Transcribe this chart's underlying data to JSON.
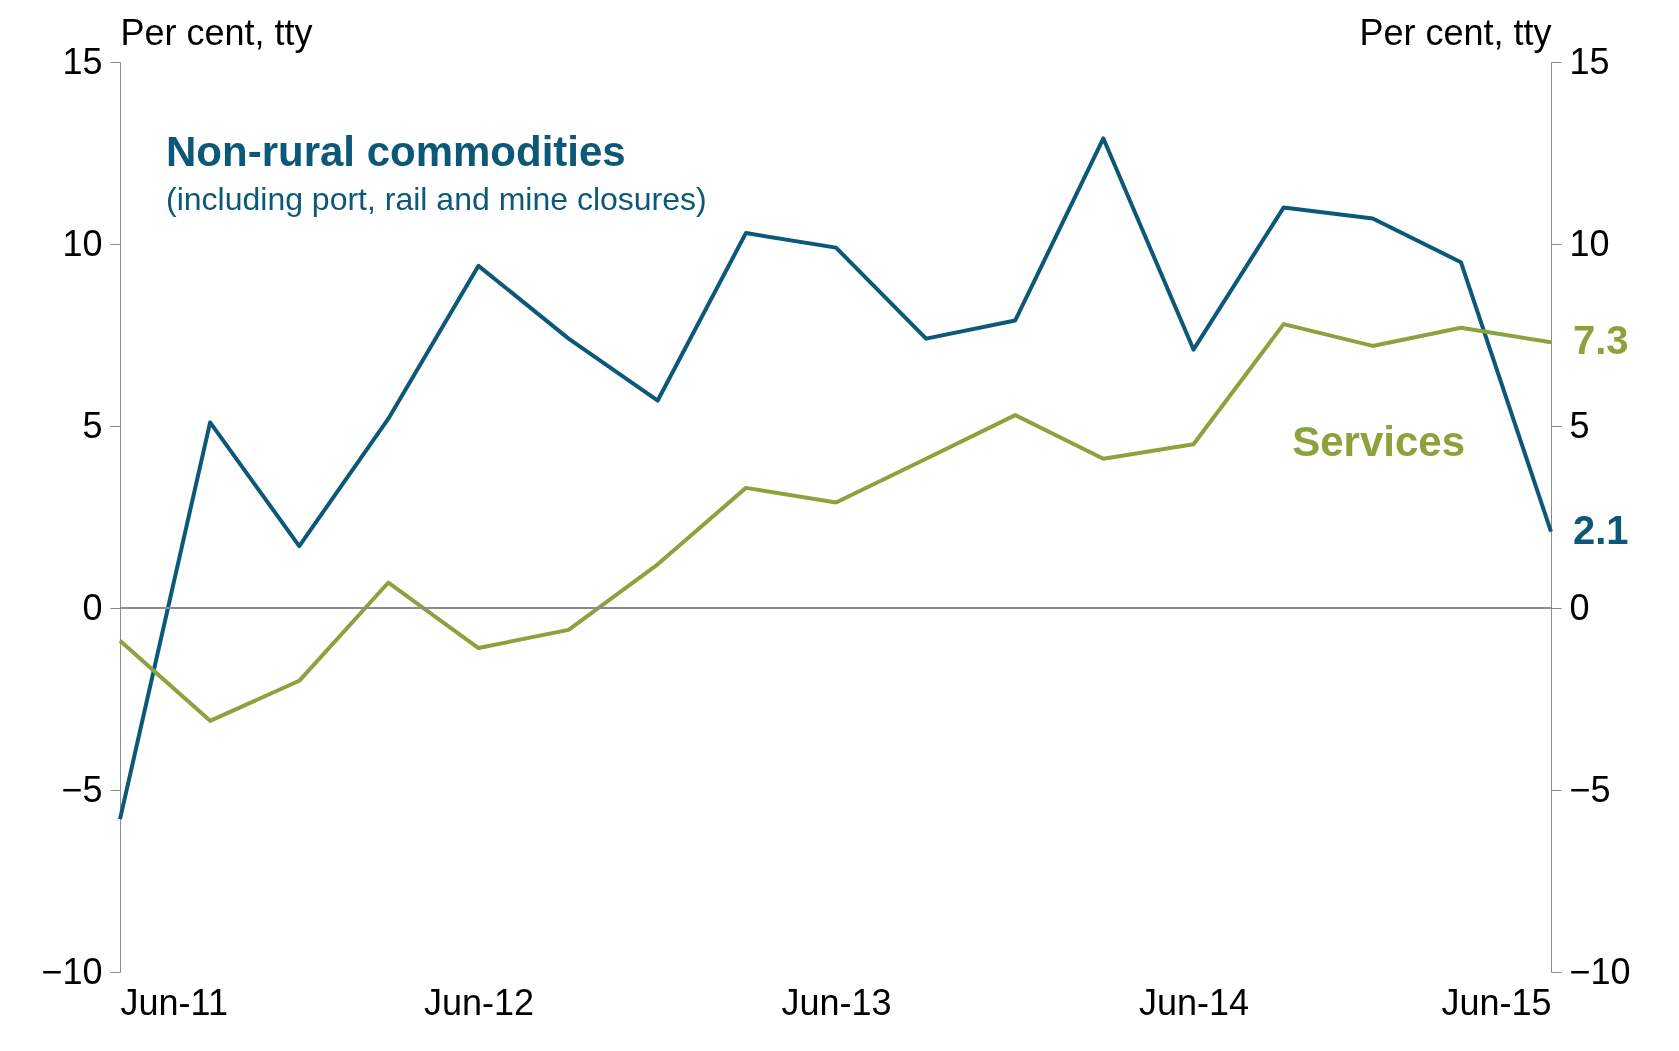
{
  "chart_data": {
    "type": "line",
    "ylabel": "Per cent, tty",
    "y2label": "Per cent, tty",
    "x": [
      "2011-06",
      "2011-09",
      "2011-12",
      "2012-03",
      "2012-06",
      "2012-09",
      "2012-12",
      "2013-03",
      "2013-06",
      "2013-09",
      "2013-12",
      "2014-03",
      "2014-06",
      "2014-09",
      "2014-12",
      "2015-03",
      "2015-06"
    ],
    "xlim": [
      "2011-06",
      "2015-06"
    ],
    "xticks": [
      {
        "value": "2011-06",
        "label": "Jun-11"
      },
      {
        "value": "2012-06",
        "label": "Jun-12"
      },
      {
        "value": "2013-06",
        "label": "Jun-13"
      },
      {
        "value": "2014-06",
        "label": "Jun-14"
      },
      {
        "value": "2015-06",
        "label": "Jun-15"
      }
    ],
    "ylim": [
      -10,
      15
    ],
    "yticks": [
      -10,
      -5,
      0,
      5,
      10,
      15
    ],
    "y2lim": [
      -10,
      15
    ],
    "y2ticks": [
      -10,
      -5,
      0,
      5,
      10,
      15
    ],
    "series": [
      {
        "name": "Non-rural commodities",
        "color": "#0b5878",
        "values": [
          -5.8,
          5.1,
          1.7,
          5.2,
          9.4,
          7.4,
          5.7,
          10.3,
          9.9,
          7.4,
          7.9,
          12.9,
          7.1,
          11.0,
          10.7,
          9.5,
          2.1
        ],
        "value_labels": [
          null,
          null,
          null,
          null,
          null,
          null,
          null,
          null,
          null,
          null,
          null,
          null,
          null,
          null,
          null,
          null,
          "2.1"
        ]
      },
      {
        "name": "Services",
        "color": "#8ca23c",
        "values": [
          -0.9,
          -3.1,
          -2.0,
          0.7,
          -1.1,
          -0.6,
          1.2,
          3.3,
          2.9,
          4.1,
          5.3,
          4.1,
          4.5,
          7.8,
          7.2,
          7.7,
          7.3
        ],
        "value_labels": [
          null,
          null,
          null,
          null,
          null,
          null,
          null,
          null,
          null,
          null,
          null,
          null,
          null,
          null,
          null,
          null,
          "7.3"
        ]
      }
    ],
    "annotations": [
      "(including port, rail and mine closures)"
    ],
    "ref_lines": [
      {
        "axis": "y",
        "value": 0,
        "label": null,
        "color": "#8c8c8c"
      }
    ],
    "grid": false,
    "legend": false,
    "marker": "none",
    "line_style": "solid"
  }
}
